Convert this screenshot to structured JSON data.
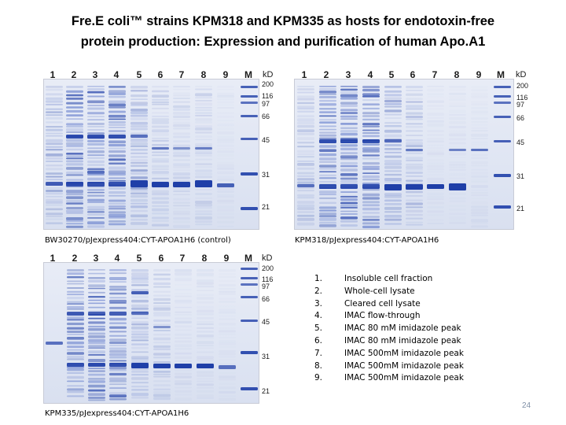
{
  "title": {
    "line1": "Fre.E coli™ strains KPM318 and KPM335 as hosts for endotoxin-free",
    "line2": "protein production:  Expression and purification of human Apo.A1"
  },
  "gels": [
    {
      "id": "bw30270",
      "lanes": [
        "1",
        "2",
        "3",
        "4",
        "5",
        "6",
        "7",
        "8",
        "9",
        "M"
      ],
      "kd_label": "kD",
      "markers": [
        "200",
        "116",
        "97",
        "66",
        "45",
        "31",
        "21"
      ],
      "caption": "BW30270/pJexpress404:CYT-APOA1H6 (control)"
    },
    {
      "id": "kpm318",
      "lanes": [
        "1",
        "2",
        "3",
        "4",
        "5",
        "6",
        "7",
        "8",
        "9",
        "M"
      ],
      "kd_label": "kD",
      "markers": [
        "200",
        "116",
        "97",
        "66",
        "45",
        "31",
        "21"
      ],
      "caption": "KPM318/pJexpress404:CYT-APOA1H6"
    },
    {
      "id": "kpm335",
      "lanes": [
        "1",
        "2",
        "3",
        "4",
        "5",
        "6",
        "7",
        "8",
        "9",
        "M"
      ],
      "kd_label": "kD",
      "markers": [
        "200",
        "116",
        "97",
        "66",
        "45",
        "31",
        "21"
      ],
      "caption": "KPM335/pJexpress404:CYT-APOA1H6"
    }
  ],
  "legend": [
    {
      "num": "1.",
      "text": "Insoluble cell fraction"
    },
    {
      "num": "2.",
      "text": "Whole-cell lysate"
    },
    {
      "num": "3.",
      "text": "Cleared cell lysate"
    },
    {
      "num": "4.",
      "text": "IMAC flow-through"
    },
    {
      "num": "5.",
      "text": "IMAC 80 mM imidazole peak"
    },
    {
      "num": "6.",
      "text": "IMAC 80 mM imidazole peak"
    },
    {
      "num": "7.",
      "text": "IMAC 500mM imidazole peak"
    },
    {
      "num": "8.",
      "text": "IMAC 500mM imidazole peak"
    },
    {
      "num": "9.",
      "text": "IMAC 500mM imidazole peak"
    }
  ],
  "page_number": "24",
  "colors": {
    "band": "#1f3fa8",
    "band_light": "#6f86cf",
    "gel_bg": "#e3e8f4"
  }
}
